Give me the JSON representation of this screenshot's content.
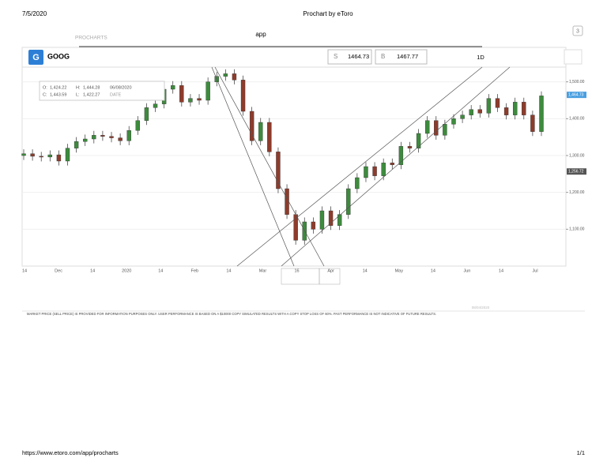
{
  "header": {
    "date": "7/5/2020",
    "title": "Prochart by eToro",
    "section": "PROCHARTS",
    "app": "app",
    "page_icon": "3"
  },
  "toolbar": {
    "logo": "G",
    "symbol": "GOOG",
    "sell_label": "S",
    "sell": "1464.73",
    "buy_label": "B",
    "buy": "1467.77",
    "interval": "1D"
  },
  "info": {
    "o_label": "O:",
    "o": "1,424.22",
    "h_label": "H:",
    "h": "1,444.28",
    "date": "06/08/2020",
    "c_label": "C:",
    "c": "1,443.59",
    "l_label": "L:",
    "l": "1,422.27",
    "date_label": "DATE"
  },
  "chart_data": {
    "type": "candlestick",
    "up_color": "#3d8b3d",
    "down_color": "#8e3b2b",
    "xticks": [
      "14",
      "Dec",
      "14",
      "2020",
      "14",
      "Feb",
      "14",
      "Mar",
      "16",
      "Apr",
      "14",
      "May",
      "14",
      "Jun",
      "14",
      "Jul"
    ],
    "ylim": [
      1000,
      1540
    ],
    "yticks": [
      {
        "value": 1100,
        "label": "1,100.00"
      },
      {
        "value": 1200,
        "label": "1,200.00"
      },
      {
        "value": 1300,
        "label": "1,300.00"
      },
      {
        "value": 1400,
        "label": "1,400.00"
      },
      {
        "value": 1500,
        "label": "1,500.00"
      }
    ],
    "price_markers": [
      {
        "value": 1464.73,
        "label": "1,464.73",
        "color": "#4a9fe0"
      },
      {
        "value": 1256.72,
        "label": "1,256.72",
        "color": "#555555"
      }
    ],
    "open": [
      1300,
      1305,
      1298,
      1296,
      1302,
      1285,
      1320,
      1338,
      1345,
      1355,
      1352,
      1348,
      1340,
      1368,
      1395,
      1430,
      1440,
      1480,
      1490,
      1445,
      1455,
      1450,
      1500,
      1515,
      1522,
      1505,
      1420,
      1340,
      1390,
      1310,
      1210,
      1140,
      1070,
      1120,
      1100,
      1150,
      1110,
      1140,
      1210,
      1240,
      1270,
      1245,
      1280,
      1275,
      1325,
      1320,
      1360,
      1395,
      1355,
      1385,
      1400,
      1410,
      1425,
      1415,
      1455,
      1430,
      1410,
      1445,
      1410,
      1365
    ],
    "high": [
      1317,
      1317,
      1310,
      1314,
      1314,
      1332,
      1350,
      1357,
      1367,
      1367,
      1364,
      1360,
      1380,
      1407,
      1442,
      1452,
      1492,
      1502,
      1502,
      1467,
      1467,
      1512,
      1527,
      1534,
      1534,
      1517,
      1432,
      1402,
      1402,
      1322,
      1222,
      1152,
      1132,
      1132,
      1162,
      1162,
      1152,
      1222,
      1252,
      1282,
      1282,
      1292,
      1292,
      1337,
      1337,
      1372,
      1407,
      1407,
      1397,
      1412,
      1422,
      1437,
      1437,
      1467,
      1467,
      1442,
      1457,
      1457,
      1422,
      1474
    ],
    "low": [
      1288,
      1286,
      1284,
      1284,
      1273,
      1273,
      1308,
      1326,
      1333,
      1340,
      1336,
      1328,
      1328,
      1356,
      1383,
      1418,
      1428,
      1468,
      1433,
      1433,
      1438,
      1438,
      1488,
      1503,
      1493,
      1408,
      1328,
      1328,
      1298,
      1198,
      1128,
      1058,
      1058,
      1088,
      1088,
      1098,
      1098,
      1128,
      1198,
      1228,
      1233,
      1233,
      1263,
      1263,
      1308,
      1308,
      1348,
      1343,
      1343,
      1373,
      1388,
      1398,
      1403,
      1403,
      1418,
      1398,
      1398,
      1398,
      1353,
      1353
    ],
    "close": [
      1305,
      1298,
      1296,
      1302,
      1285,
      1320,
      1338,
      1345,
      1355,
      1352,
      1348,
      1340,
      1368,
      1395,
      1430,
      1440,
      1480,
      1490,
      1445,
      1455,
      1450,
      1500,
      1515,
      1522,
      1505,
      1420,
      1340,
      1390,
      1310,
      1210,
      1140,
      1070,
      1120,
      1100,
      1150,
      1110,
      1140,
      1210,
      1240,
      1270,
      1245,
      1280,
      1275,
      1325,
      1320,
      1360,
      1395,
      1355,
      1385,
      1400,
      1410,
      1425,
      1415,
      1455,
      1430,
      1410,
      1445,
      1410,
      1365,
      1462
    ]
  },
  "footer": {
    "stamp": "08/04/2020",
    "disclaimer": "MARKET PRICE (SELL PRICE) IS PROVIDED FOR INFORMATION PURPOSES ONLY. USER PERFORMANCE IS BASED ON A $10000 COPY SIMULATED RESULTS WITH A COPY STOP LOSS OF 60%. PAST PERFORMANCE IS NOT INDICATIVE OF FUTURE RESULTS.",
    "url": "https://www.etoro.com/app/procharts",
    "pages": "1/1"
  }
}
